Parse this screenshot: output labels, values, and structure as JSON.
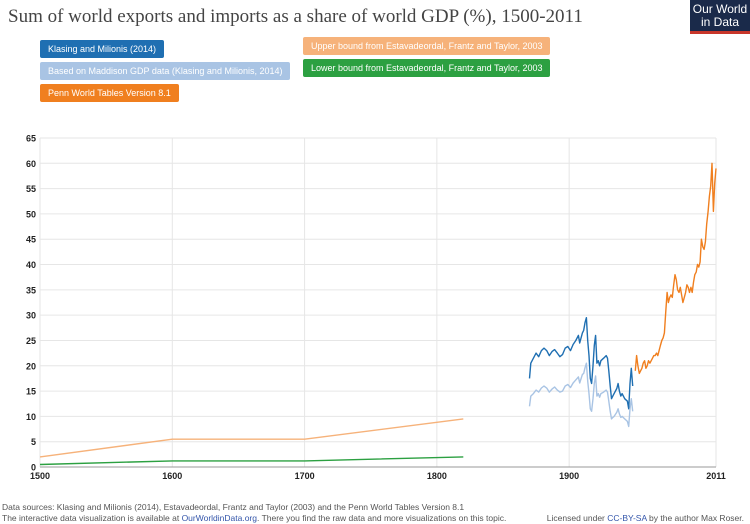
{
  "header": {
    "title": "Sum of world exports and imports  as a share of world GDP (%), 1500-2011",
    "logo_line1": "Our World",
    "logo_line2": "in Data"
  },
  "footer": {
    "sources": "Data sources: Klasing and Milionis (2014), Estavadeordal, Frantz and Taylor (2003) and the Penn World Tables Version 8.1",
    "interactive_prefix": "The interactive data visualization is available at",
    "interactive_link": "OurWorldinData.org",
    "interactive_suffix": ". There you find the raw data and more visualizations on this topic.",
    "license_prefix": "Licensed under",
    "license_link": "CC-BY-SA",
    "license_suffix": "by the author Max Roser."
  },
  "colors": {
    "klasing": "#1f6fb2",
    "maddison": "#a9c4e4",
    "penn": "#f07f1f",
    "upper": "#f6b27a",
    "lower": "#2ca041",
    "grid": "#e6e6e6",
    "axis_text": "#222222"
  },
  "chart_data": {
    "type": "line",
    "xlim": [
      1500,
      2011
    ],
    "ylim": [
      0,
      65
    ],
    "xticks": [
      1500,
      1600,
      1700,
      1800,
      1900,
      2011
    ],
    "yticks": [
      0,
      5,
      10,
      15,
      20,
      25,
      30,
      35,
      40,
      45,
      50,
      55,
      60,
      65
    ],
    "grid": true,
    "legend_position": "top",
    "series": [
      {
        "name": "Klasing and Milionis (2014)",
        "color_key": "klasing",
        "points": [
          [
            1870,
            17.5
          ],
          [
            1871,
            20.5
          ],
          [
            1873,
            21.5
          ],
          [
            1875,
            22.5
          ],
          [
            1877,
            21.8
          ],
          [
            1879,
            23.0
          ],
          [
            1881,
            23.5
          ],
          [
            1883,
            23.0
          ],
          [
            1885,
            22.0
          ],
          [
            1887,
            22.8
          ],
          [
            1889,
            23.2
          ],
          [
            1891,
            22.5
          ],
          [
            1893,
            21.8
          ],
          [
            1895,
            22.2
          ],
          [
            1897,
            23.5
          ],
          [
            1899,
            23.8
          ],
          [
            1901,
            23.0
          ],
          [
            1903,
            24.2
          ],
          [
            1905,
            25.0
          ],
          [
            1907,
            26.0
          ],
          [
            1908,
            24.5
          ],
          [
            1910,
            26.5
          ],
          [
            1911,
            27.0
          ],
          [
            1912,
            28.5
          ],
          [
            1913,
            29.5
          ],
          [
            1914,
            25.0
          ],
          [
            1915,
            22.0
          ],
          [
            1916,
            17.5
          ],
          [
            1917,
            16.5
          ],
          [
            1918,
            20.0
          ],
          [
            1919,
            24.0
          ],
          [
            1920,
            26.0
          ],
          [
            1921,
            20.5
          ],
          [
            1922,
            21.0
          ],
          [
            1923,
            20.0
          ],
          [
            1924,
            21.0
          ],
          [
            1926,
            21.5
          ],
          [
            1928,
            22.0
          ],
          [
            1929,
            21.5
          ],
          [
            1930,
            19.0
          ],
          [
            1931,
            16.0
          ],
          [
            1932,
            13.5
          ],
          [
            1933,
            14.0
          ],
          [
            1934,
            14.5
          ],
          [
            1936,
            15.5
          ],
          [
            1937,
            16.5
          ],
          [
            1938,
            15.0
          ],
          [
            1939,
            14.0
          ],
          [
            1940,
            14.5
          ],
          [
            1942,
            13.5
          ],
          [
            1944,
            13.0
          ],
          [
            1945,
            11.5
          ],
          [
            1946,
            16.5
          ],
          [
            1947,
            19.5
          ],
          [
            1948,
            16.0
          ]
        ]
      },
      {
        "name": "Based on Maddison GDP data (Klasing and Milionis, 2014)",
        "color_key": "maddison",
        "points": [
          [
            1870,
            12.0
          ],
          [
            1871,
            14.0
          ],
          [
            1873,
            14.5
          ],
          [
            1875,
            15.2
          ],
          [
            1877,
            14.8
          ],
          [
            1879,
            15.6
          ],
          [
            1881,
            16.0
          ],
          [
            1883,
            15.6
          ],
          [
            1885,
            14.8
          ],
          [
            1887,
            15.4
          ],
          [
            1889,
            15.8
          ],
          [
            1891,
            15.2
          ],
          [
            1893,
            14.8
          ],
          [
            1895,
            15.0
          ],
          [
            1897,
            16.0
          ],
          [
            1899,
            16.3
          ],
          [
            1901,
            15.7
          ],
          [
            1903,
            16.6
          ],
          [
            1905,
            17.2
          ],
          [
            1907,
            17.8
          ],
          [
            1908,
            16.6
          ],
          [
            1910,
            18.3
          ],
          [
            1911,
            18.5
          ],
          [
            1912,
            19.6
          ],
          [
            1913,
            20.5
          ],
          [
            1914,
            17.0
          ],
          [
            1915,
            14.5
          ],
          [
            1916,
            11.5
          ],
          [
            1917,
            11.0
          ],
          [
            1918,
            13.5
          ],
          [
            1919,
            16.5
          ],
          [
            1920,
            18.0
          ],
          [
            1921,
            14.0
          ],
          [
            1922,
            14.5
          ],
          [
            1923,
            13.8
          ],
          [
            1924,
            14.5
          ],
          [
            1926,
            14.8
          ],
          [
            1928,
            15.2
          ],
          [
            1929,
            14.8
          ],
          [
            1930,
            13.0
          ],
          [
            1931,
            11.0
          ],
          [
            1932,
            9.5
          ],
          [
            1933,
            9.8
          ],
          [
            1934,
            10.0
          ],
          [
            1936,
            10.8
          ],
          [
            1937,
            11.5
          ],
          [
            1938,
            10.5
          ],
          [
            1939,
            9.8
          ],
          [
            1940,
            10.0
          ],
          [
            1942,
            9.5
          ],
          [
            1944,
            9.0
          ],
          [
            1945,
            8.0
          ],
          [
            1946,
            11.5
          ],
          [
            1947,
            13.5
          ],
          [
            1948,
            11.0
          ]
        ]
      },
      {
        "name": "Penn World Tables Version 8.1",
        "color_key": "penn",
        "points": [
          [
            1950,
            19.0
          ],
          [
            1951,
            22.0
          ],
          [
            1952,
            20.0
          ],
          [
            1953,
            18.5
          ],
          [
            1954,
            19.0
          ],
          [
            1955,
            19.5
          ],
          [
            1956,
            20.5
          ],
          [
            1957,
            21.0
          ],
          [
            1958,
            19.5
          ],
          [
            1959,
            20.0
          ],
          [
            1960,
            21.0
          ],
          [
            1961,
            20.5
          ],
          [
            1962,
            21.0
          ],
          [
            1963,
            21.5
          ],
          [
            1964,
            22.0
          ],
          [
            1965,
            22.0
          ],
          [
            1966,
            22.5
          ],
          [
            1967,
            22.0
          ],
          [
            1968,
            23.0
          ],
          [
            1969,
            24.0
          ],
          [
            1970,
            25.0
          ],
          [
            1971,
            25.5
          ],
          [
            1972,
            26.5
          ],
          [
            1973,
            30.5
          ],
          [
            1974,
            34.5
          ],
          [
            1975,
            32.5
          ],
          [
            1976,
            33.5
          ],
          [
            1977,
            34.0
          ],
          [
            1978,
            33.5
          ],
          [
            1979,
            36.0
          ],
          [
            1980,
            38.0
          ],
          [
            1981,
            37.0
          ],
          [
            1982,
            35.0
          ],
          [
            1983,
            34.5
          ],
          [
            1984,
            35.5
          ],
          [
            1985,
            34.0
          ],
          [
            1986,
            32.5
          ],
          [
            1987,
            33.5
          ],
          [
            1988,
            34.5
          ],
          [
            1989,
            36.0
          ],
          [
            1990,
            35.5
          ],
          [
            1991,
            34.5
          ],
          [
            1992,
            35.5
          ],
          [
            1993,
            34.5
          ],
          [
            1994,
            36.5
          ],
          [
            1995,
            38.0
          ],
          [
            1996,
            38.5
          ],
          [
            1997,
            40.0
          ],
          [
            1998,
            39.5
          ],
          [
            1999,
            40.5
          ],
          [
            2000,
            45.0
          ],
          [
            2001,
            43.5
          ],
          [
            2002,
            43.0
          ],
          [
            2003,
            44.5
          ],
          [
            2004,
            48.0
          ],
          [
            2005,
            50.5
          ],
          [
            2006,
            53.5
          ],
          [
            2007,
            55.5
          ],
          [
            2008,
            60.0
          ],
          [
            2009,
            50.5
          ],
          [
            2010,
            56.0
          ],
          [
            2011,
            59.0
          ]
        ]
      },
      {
        "name": "Upper bound from Estavadeordal, Frantz and Taylor, 2003",
        "color_key": "upper",
        "points": [
          [
            1500,
            2.0
          ],
          [
            1600,
            5.5
          ],
          [
            1700,
            5.5
          ],
          [
            1820,
            9.5
          ]
        ]
      },
      {
        "name": "Lower bound from Estavadeordal, Frantz and Taylor, 2003",
        "color_key": "lower",
        "points": [
          [
            1500,
            0.5
          ],
          [
            1600,
            1.2
          ],
          [
            1700,
            1.2
          ],
          [
            1820,
            2.0
          ]
        ]
      }
    ]
  }
}
